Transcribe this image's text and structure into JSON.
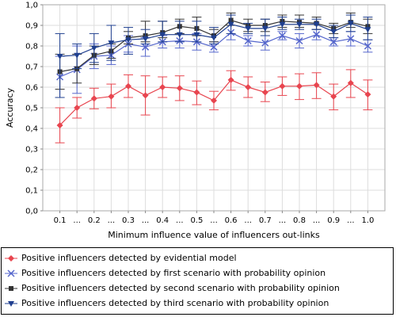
{
  "chart_data": {
    "type": "line",
    "ylabel": "Accuracy",
    "xlabel": "Minimum influence value of influencers out-links",
    "ylim": [
      0,
      1
    ],
    "yticks": [
      "0,0",
      "0,1",
      "0,2",
      "0,3",
      "0,4",
      "0,5",
      "0,6",
      "0,7",
      "0,8",
      "0,9",
      "1,0"
    ],
    "categories": [
      "0.1",
      "...",
      "0.2",
      "...",
      "0.3",
      "...",
      "0.4",
      "...",
      "0.5",
      "...",
      "0.6",
      "...",
      "0.7",
      "...",
      "0.8",
      "...",
      "0.9",
      "...",
      "1.0"
    ],
    "grid": true,
    "legend_position": "bottom",
    "series": [
      {
        "name": "Positive influencers detected by evidential model",
        "color": "#e8454f",
        "marker": "diamond",
        "values": [
          0.415,
          0.5,
          0.545,
          0.555,
          0.605,
          0.56,
          0.6,
          0.595,
          0.575,
          0.535,
          0.635,
          0.6,
          0.575,
          0.605,
          0.605,
          0.61,
          0.555,
          0.62,
          0.565
        ],
        "err_low": [
          0.33,
          0.45,
          0.495,
          0.5,
          0.55,
          0.465,
          0.55,
          0.535,
          0.515,
          0.49,
          0.585,
          0.55,
          0.53,
          0.56,
          0.54,
          0.545,
          0.49,
          0.55,
          0.49
        ],
        "err_high": [
          0.5,
          0.55,
          0.595,
          0.615,
          0.66,
          0.655,
          0.65,
          0.655,
          0.63,
          0.58,
          0.68,
          0.65,
          0.625,
          0.65,
          0.665,
          0.67,
          0.615,
          0.685,
          0.635
        ]
      },
      {
        "name": "Positive influencers detected by first scenario with probability opinion",
        "color": "#5566cc",
        "marker": "x",
        "values": [
          0.65,
          0.685,
          0.75,
          0.755,
          0.81,
          0.795,
          0.82,
          0.825,
          0.82,
          0.795,
          0.865,
          0.825,
          0.815,
          0.85,
          0.825,
          0.855,
          0.82,
          0.835,
          0.8
        ],
        "err_low": [
          0.55,
          0.57,
          0.69,
          0.71,
          0.77,
          0.75,
          0.79,
          0.79,
          0.78,
          0.77,
          0.83,
          0.8,
          0.78,
          0.83,
          0.79,
          0.83,
          0.8,
          0.8,
          0.77
        ],
        "err_high": [
          0.75,
          0.8,
          0.81,
          0.8,
          0.85,
          0.84,
          0.85,
          0.86,
          0.86,
          0.82,
          0.9,
          0.85,
          0.85,
          0.87,
          0.86,
          0.88,
          0.84,
          0.87,
          0.83
        ]
      },
      {
        "name": "Positive influencers detected by second scenario with probability opinion",
        "color": "#333333",
        "marker": "square",
        "values": [
          0.675,
          0.69,
          0.755,
          0.775,
          0.84,
          0.85,
          0.865,
          0.895,
          0.885,
          0.85,
          0.925,
          0.9,
          0.9,
          0.92,
          0.915,
          0.91,
          0.885,
          0.915,
          0.895
        ],
        "err_low": [
          0.59,
          0.62,
          0.71,
          0.74,
          0.81,
          0.82,
          0.84,
          0.86,
          0.85,
          0.82,
          0.9,
          0.87,
          0.87,
          0.89,
          0.89,
          0.88,
          0.86,
          0.89,
          0.86
        ],
        "err_high": [
          0.76,
          0.76,
          0.8,
          0.81,
          0.87,
          0.92,
          0.92,
          0.93,
          0.94,
          0.88,
          0.96,
          0.93,
          0.93,
          0.95,
          0.95,
          0.94,
          0.91,
          0.96,
          0.93
        ]
      },
      {
        "name": "Positive influencers detected by third scenario with probability opinion",
        "color": "#1f3f8f",
        "marker": "triangle-down",
        "values": [
          0.75,
          0.755,
          0.79,
          0.815,
          0.83,
          0.835,
          0.855,
          0.855,
          0.855,
          0.84,
          0.905,
          0.885,
          0.885,
          0.905,
          0.905,
          0.905,
          0.87,
          0.91,
          0.88
        ],
        "err_low": [
          0.55,
          0.69,
          0.72,
          0.73,
          0.76,
          0.81,
          0.82,
          0.82,
          0.82,
          0.81,
          0.86,
          0.86,
          0.85,
          0.88,
          0.88,
          0.88,
          0.84,
          0.87,
          0.83
        ],
        "err_high": [
          0.86,
          0.81,
          0.86,
          0.9,
          0.89,
          0.88,
          0.92,
          0.92,
          0.92,
          0.89,
          0.95,
          0.91,
          0.93,
          0.94,
          0.93,
          0.93,
          0.9,
          0.95,
          0.94
        ]
      }
    ]
  }
}
